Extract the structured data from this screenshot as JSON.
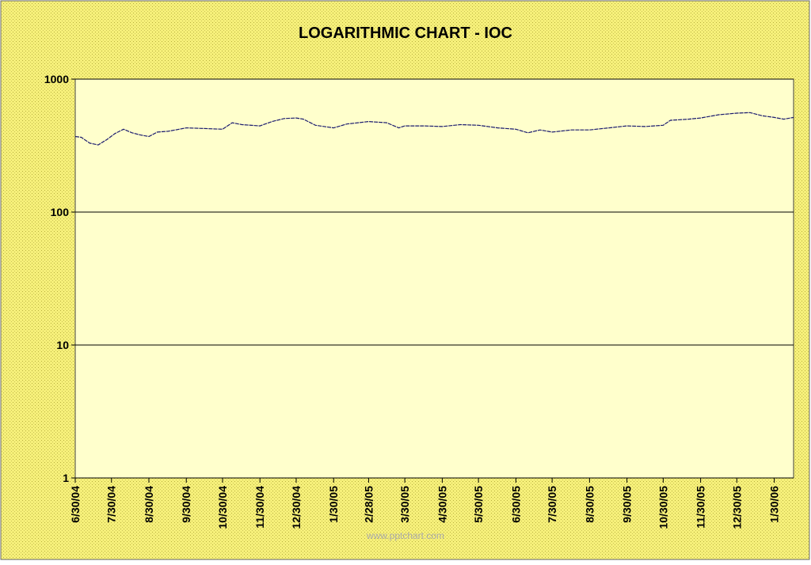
{
  "chart_data": {
    "type": "line",
    "title": "LOGARITHMIC CHART - IOC",
    "watermark": "www.pptchart.com",
    "log_scale": true,
    "grid": true,
    "ylim": [
      1,
      1000
    ],
    "yticks": [
      1,
      10,
      100,
      1000
    ],
    "xlim": [
      "2004-06-30",
      "2006-02-15"
    ],
    "xticks": [
      {
        "value": "2004-06-30",
        "label": "6/30/04"
      },
      {
        "value": "2004-07-30",
        "label": "7/30/04"
      },
      {
        "value": "2004-08-30",
        "label": "8/30/04"
      },
      {
        "value": "2004-09-30",
        "label": "9/30/04"
      },
      {
        "value": "2004-10-30",
        "label": "10/30/04"
      },
      {
        "value": "2004-11-30",
        "label": "11/30/04"
      },
      {
        "value": "2004-12-30",
        "label": "12/30/04"
      },
      {
        "value": "2005-01-30",
        "label": "1/30/05"
      },
      {
        "value": "2005-02-28",
        "label": "2/28/05"
      },
      {
        "value": "2005-03-30",
        "label": "3/30/05"
      },
      {
        "value": "2005-04-30",
        "label": "4/30/05"
      },
      {
        "value": "2005-05-30",
        "label": "5/30/05"
      },
      {
        "value": "2005-06-30",
        "label": "6/30/05"
      },
      {
        "value": "2005-07-30",
        "label": "7/30/05"
      },
      {
        "value": "2005-08-30",
        "label": "8/30/05"
      },
      {
        "value": "2005-09-30",
        "label": "9/30/05"
      },
      {
        "value": "2005-10-30",
        "label": "10/30/05"
      },
      {
        "value": "2005-11-30",
        "label": "11/30/05"
      },
      {
        "value": "2005-12-30",
        "label": "12/30/05"
      },
      {
        "value": "2006-01-30",
        "label": "1/30/06"
      }
    ],
    "series": [
      {
        "name": "IOC",
        "color": "#1a1a6e",
        "x": [
          "2004-06-30",
          "2004-07-05",
          "2004-07-12",
          "2004-07-19",
          "2004-07-26",
          "2004-08-02",
          "2004-08-09",
          "2004-08-16",
          "2004-08-23",
          "2004-08-30",
          "2004-09-06",
          "2004-09-15",
          "2004-09-30",
          "2004-10-15",
          "2004-10-30",
          "2004-11-07",
          "2004-11-15",
          "2004-11-30",
          "2004-12-10",
          "2004-12-20",
          "2004-12-30",
          "2005-01-05",
          "2005-01-15",
          "2005-01-30",
          "2005-02-10",
          "2005-02-28",
          "2005-03-15",
          "2005-03-25",
          "2005-03-30",
          "2005-04-15",
          "2005-04-30",
          "2005-05-15",
          "2005-05-30",
          "2005-06-15",
          "2005-06-30",
          "2005-07-10",
          "2005-07-20",
          "2005-07-30",
          "2005-08-15",
          "2005-08-30",
          "2005-09-15",
          "2005-09-30",
          "2005-10-15",
          "2005-10-30",
          "2005-11-05",
          "2005-11-20",
          "2005-11-30",
          "2005-12-15",
          "2005-12-30",
          "2006-01-10",
          "2006-01-20",
          "2006-01-30",
          "2006-02-07",
          "2006-02-15"
        ],
        "values": [
          370,
          365,
          330,
          320,
          350,
          390,
          420,
          395,
          380,
          370,
          400,
          405,
          430,
          425,
          420,
          470,
          455,
          445,
          480,
          505,
          510,
          500,
          450,
          430,
          460,
          480,
          470,
          430,
          445,
          445,
          440,
          455,
          450,
          430,
          420,
          395,
          415,
          400,
          415,
          415,
          430,
          445,
          440,
          450,
          490,
          500,
          510,
          540,
          555,
          560,
          530,
          515,
          500,
          515
        ]
      }
    ]
  }
}
